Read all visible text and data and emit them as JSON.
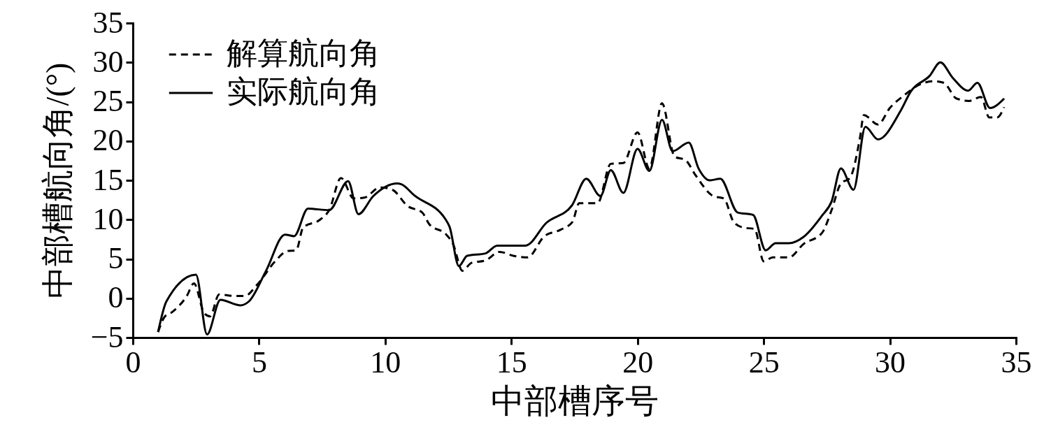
{
  "chart_data": {
    "type": "line",
    "xlabel": "中部槽序号",
    "ylabel": "中部槽航向角/(°)",
    "xlim": [
      0,
      35
    ],
    "ylim": [
      -5,
      35
    ],
    "xticks": [
      0,
      5,
      10,
      15,
      20,
      25,
      30,
      35
    ],
    "yticks": [
      -5,
      0,
      5,
      10,
      15,
      20,
      25,
      30,
      35
    ],
    "grid": false,
    "legend": "top left",
    "series": [
      {
        "name": "解算航向角",
        "color": "#000000",
        "line_style": "dashed",
        "x": [
          1.0,
          1.25,
          1.58,
          2.14,
          2.42,
          2.83,
          3.06,
          3.42,
          3.97,
          4.44,
          4.92,
          5.64,
          6.11,
          6.47,
          6.75,
          7.42,
          7.78,
          8.25,
          8.75,
          9.17,
          9.8,
          10.28,
          10.9,
          11.47,
          11.75,
          12.42,
          12.69,
          13.06,
          13.42,
          13.97,
          14.53,
          15.08,
          15.64,
          16.31,
          16.94,
          17.42,
          17.69,
          18.42,
          18.94,
          19.44,
          20.0,
          20.47,
          20.97,
          21.47,
          21.89,
          22.31,
          23.0,
          23.42,
          23.81,
          24.17,
          24.64,
          25.0,
          25.36,
          26.0,
          26.58,
          27.31,
          27.69,
          28.06,
          28.42,
          28.81,
          28.97,
          29.53,
          30.0,
          30.56,
          31.2,
          31.75,
          32.14,
          32.64,
          33.14,
          33.61,
          33.94,
          34.25,
          34.53
        ],
        "values": [
          -4.3,
          -2.4,
          -1.7,
          0.3,
          1.9,
          -1.9,
          -2.3,
          0.5,
          0.3,
          0.3,
          1.7,
          4.7,
          6.0,
          6.1,
          9.0,
          10.0,
          11.2,
          15.3,
          12.7,
          12.8,
          14.1,
          13.8,
          11.7,
          10.9,
          9.4,
          8.1,
          6.9,
          3.5,
          4.5,
          4.8,
          5.9,
          5.4,
          5.2,
          7.9,
          8.7,
          9.7,
          12.1,
          12.1,
          17.1,
          17.2,
          21.1,
          16.5,
          24.8,
          18.0,
          17.6,
          15.6,
          13.0,
          12.7,
          9.7,
          9.0,
          8.8,
          4.7,
          5.2,
          5.2,
          6.9,
          8.3,
          11.2,
          14.6,
          15.3,
          20.3,
          23.3,
          22.1,
          24.2,
          25.8,
          27.2,
          27.6,
          27.4,
          25.4,
          25.1,
          25.6,
          23.0,
          23.0,
          24.3
        ]
      },
      {
        "name": "实际航向角",
        "color": "#000000",
        "line_style": "solid",
        "x": [
          1.0,
          1.33,
          2.5,
          2.94,
          3.47,
          4.25,
          4.6,
          5.28,
          6.03,
          6.39,
          6.94,
          7.78,
          8.53,
          8.94,
          9.53,
          10.47,
          10.64,
          11.15,
          12.4,
          12.55,
          12.92,
          13.25,
          13.97,
          14.44,
          15.56,
          16.39,
          17.4,
          17.97,
          18.53,
          18.94,
          19.44,
          20.0,
          20.47,
          20.97,
          21.39,
          22.03,
          22.42,
          22.86,
          23.28,
          23.97,
          24.58,
          25.08,
          25.47,
          26.0,
          26.58,
          27.31,
          27.69,
          28.06,
          28.56,
          29.03,
          29.53,
          30.42,
          30.83,
          31.58,
          32.0,
          32.5,
          33.1,
          33.47,
          33.97,
          34.53
        ],
        "values": [
          -4.3,
          -0.4,
          3.0,
          -4.6,
          -0.2,
          -0.9,
          -0.4,
          3.5,
          8.1,
          7.9,
          11.4,
          11.2,
          14.9,
          10.7,
          13.0,
          14.6,
          14.5,
          13.1,
          10.0,
          9.1,
          4.1,
          5.4,
          5.7,
          6.7,
          6.7,
          9.6,
          11.8,
          15.2,
          13.0,
          16.3,
          13.4,
          19.0,
          16.2,
          22.7,
          18.7,
          19.8,
          16.5,
          15.0,
          15.2,
          10.9,
          10.6,
          6.1,
          7.0,
          7.0,
          7.8,
          10.5,
          12.3,
          16.5,
          13.8,
          21.8,
          20.2,
          23.8,
          26.3,
          28.3,
          30.0,
          28.0,
          26.4,
          27.4,
          24.2,
          25.4
        ]
      }
    ]
  }
}
